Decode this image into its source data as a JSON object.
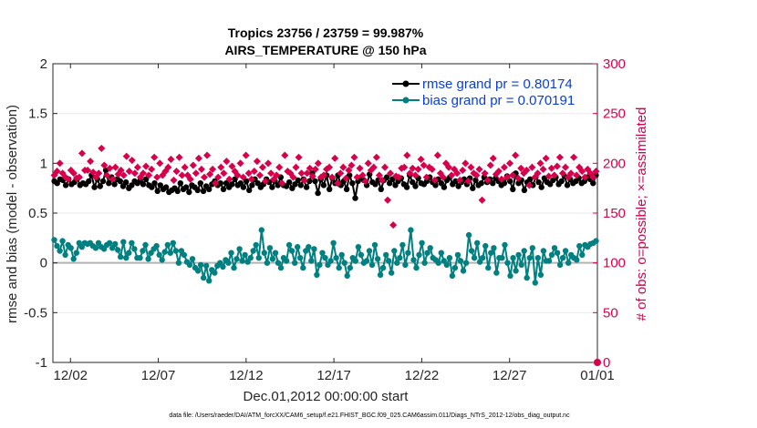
{
  "chart_data": {
    "type": "line",
    "title_line1": "Tropics 23756 / 23759 = 99.987%",
    "title_line2": "AIRS_TEMPERATURE @ 150 hPa",
    "xlabel": "Dec.01,2012 00:00:00 start",
    "ylabel_left": "rmse and bias (model - observation)",
    "ylabel_right": "# of obs: o=possible; ×=assimilated",
    "footnote": "data file: /Users/raeder/DAI/ATM_forcXX/CAM6_setup/f.e21.FHIST_BGC.f09_025.CAM6assim.011/Diags_NTrS_2012-12/obs_diag_output.nc",
    "xlim": [
      0,
      31
    ],
    "x_ticks": [
      {
        "x": 1,
        "label": "12/02"
      },
      {
        "x": 6,
        "label": "12/07"
      },
      {
        "x": 11,
        "label": "12/12"
      },
      {
        "x": 16,
        "label": "12/17"
      },
      {
        "x": 21,
        "label": "12/22"
      },
      {
        "x": 26,
        "label": "12/27"
      },
      {
        "x": 31,
        "label": "01/01"
      }
    ],
    "ylim_left": [
      -1,
      2
    ],
    "y_ticks_left": [
      "-1",
      "-0.5",
      "0",
      "0.5",
      "1",
      "1.5",
      "2"
    ],
    "ylim_right": [
      0,
      300
    ],
    "y_ticks_right": [
      "0",
      "50",
      "100",
      "150",
      "200",
      "250",
      "300"
    ],
    "legend": {
      "placement": "top-right",
      "entries": [
        {
          "name": "rmse",
          "label": "rmse grand pr = 0.80174"
        },
        {
          "name": "bias",
          "label": "bias grand pr = 0.070191"
        }
      ]
    },
    "colors": {
      "rmse": "#000000",
      "bias": "#008080",
      "obs": "#d6004c",
      "zero_line": "#b3b3b3",
      "axis": "#262626"
    },
    "series": [
      {
        "name": "rmse",
        "axis": "left",
        "values": [
          0.82,
          0.8,
          0.84,
          0.83,
          0.78,
          0.84,
          0.79,
          0.81,
          0.85,
          0.78,
          0.8,
          0.79,
          0.82,
          0.88,
          0.76,
          0.84,
          0.77,
          0.82,
          0.93,
          0.8,
          0.86,
          0.79,
          0.84,
          0.82,
          0.77,
          0.81,
          0.75,
          0.78,
          0.82,
          0.8,
          0.83,
          0.79,
          0.84,
          0.78,
          0.76,
          0.8,
          0.72,
          0.78,
          0.74,
          0.76,
          0.71,
          0.73,
          0.75,
          0.72,
          0.8,
          0.74,
          0.76,
          0.71,
          0.78,
          0.76,
          0.73,
          0.8,
          0.72,
          0.77,
          0.74,
          0.79,
          0.82,
          0.78,
          0.8,
          0.74,
          0.8,
          0.76,
          0.79,
          0.84,
          0.78,
          0.8,
          0.76,
          0.82,
          0.73,
          0.78,
          0.84,
          0.8,
          0.76,
          0.79,
          0.84,
          0.81,
          0.76,
          0.82,
          0.78,
          0.86,
          0.78,
          0.77,
          0.81,
          0.75,
          0.79,
          0.83,
          0.78,
          0.84,
          0.76,
          0.82,
          0.9,
          0.82,
          0.7,
          0.84,
          0.78,
          0.88,
          0.74,
          0.85,
          0.8,
          0.88,
          0.78,
          0.82,
          0.74,
          0.88,
          0.8,
          0.65,
          0.82,
          0.86,
          0.83,
          0.78,
          0.89,
          0.81,
          0.79,
          0.83,
          0.74,
          0.83,
          0.86,
          0.8,
          0.84,
          0.78,
          0.82,
          0.85,
          0.79,
          0.76,
          0.88,
          0.81,
          0.77,
          0.85,
          0.8,
          0.79,
          0.82,
          0.86,
          0.81,
          0.78,
          0.84,
          0.8,
          0.76,
          0.83,
          0.86,
          0.79,
          0.82,
          0.77,
          0.81,
          0.84,
          0.79,
          0.85,
          0.75,
          0.83,
          0.78,
          0.8,
          0.86,
          0.81,
          0.84,
          0.8,
          0.85,
          0.82,
          0.78,
          0.8,
          0.87,
          0.82,
          0.74,
          0.9,
          0.8,
          0.83,
          0.73,
          0.81,
          0.84,
          0.78,
          0.86,
          0.81,
          0.76,
          0.85,
          0.81,
          0.79,
          0.83,
          0.86,
          0.79,
          0.82,
          0.87,
          0.78,
          0.84,
          0.8,
          0.82,
          0.85,
          0.8,
          0.82,
          0.86,
          0.84,
          0.8,
          0.88
        ]
      },
      {
        "name": "bias",
        "axis": "left",
        "values": [
          0.23,
          0.17,
          0.12,
          0.22,
          0.08,
          0.18,
          0.15,
          0.04,
          0.1,
          0.2,
          0.16,
          0.2,
          0.19,
          0.2,
          0.17,
          0.15,
          0.2,
          0.16,
          0.14,
          0.18,
          0.2,
          0.15,
          0.19,
          0.13,
          0.06,
          0.21,
          0.05,
          0.1,
          0.2,
          0.14,
          0.05,
          0.05,
          0.12,
          0.18,
          0.04,
          0.1,
          0.14,
          0.17,
          0.08,
          0.03,
          0.11,
          0.18,
          0.1,
          0.2,
          0.12,
          0.0,
          0.12,
          0.08,
          0.01,
          -0.02,
          0.04,
          -0.05,
          -0.08,
          -0.02,
          -0.15,
          -0.03,
          -0.18,
          -0.07,
          -0.1,
          -0.03,
          0.0,
          -0.04,
          0.03,
          0.0,
          0.1,
          -0.05,
          0.04,
          0.14,
          0.02,
          0.08,
          0.01,
          0.05,
          0.12,
          0.18,
          0.05,
          0.33,
          0.1,
          0.0,
          0.15,
          0.04,
          0.1,
          0.0,
          -0.05,
          0.05,
          0.02,
          0.18,
          0.12,
          0.0,
          0.16,
          0.05,
          -0.05,
          0.12,
          0.16,
          0.02,
          0.14,
          -0.12,
          -0.02,
          0.1,
          0.05,
          -0.02,
          0.02,
          0.2,
          0.05,
          -0.05,
          0.08,
          0.0,
          -0.13,
          -0.05,
          0.05,
          0.02,
          0.16,
          0.08,
          0.0,
          0.02,
          0.12,
          -0.02,
          0.18,
          0.04,
          -0.12,
          -0.05,
          0.08,
          0.02,
          -0.1,
          0.12,
          0.0,
          0.05,
          0.18,
          -0.02,
          0.1,
          0.33,
          0.03,
          -0.05,
          0.08,
          0.2,
          0.0,
          0.1,
          0.15,
          0.05,
          0.03,
          0.0,
          0.1,
          0.02,
          -0.02,
          0.05,
          -0.13,
          -0.05,
          0.08,
          0.02,
          -0.08,
          0.0,
          0.28,
          0.12,
          0.05,
          0.2,
          0.01,
          0.05,
          0.17,
          -0.05,
          0.1,
          0.15,
          -0.1,
          0.05,
          0.05,
          0.18,
          0.0,
          -0.13,
          0.05,
          -0.08,
          0.08,
          -0.02,
          0.12,
          -0.15,
          0.05,
          0.15,
          -0.2,
          0.05,
          -0.12,
          0.12,
          0.02,
          0.02,
          0.08,
          0.15,
          0.1,
          -0.02,
          0.05,
          0.12,
          0.0,
          0.08,
          0.05,
          0.03,
          0.17,
          0.08,
          0.18,
          0.16,
          0.19,
          0.2,
          0.22
        ]
      },
      {
        "name": "obs_possible",
        "axis": "right",
        "marker": "o",
        "values": [
          0,
          0,
          0,
          0,
          0,
          0,
          0,
          0,
          0,
          0,
          0,
          0,
          0,
          0,
          0,
          0,
          0,
          0,
          0,
          0,
          0,
          0,
          0,
          0,
          0,
          0,
          0,
          0,
          0,
          0,
          0,
          0,
          0,
          0,
          0,
          0,
          0,
          0,
          0,
          0,
          0,
          0,
          0,
          0,
          0,
          0,
          0,
          0,
          0,
          0,
          0,
          0,
          0,
          0,
          0,
          0,
          0,
          0,
          0,
          0,
          0,
          0,
          0,
          0,
          0,
          0,
          0,
          0,
          0,
          0,
          0,
          0,
          0,
          0,
          0,
          0,
          0,
          0,
          0,
          0,
          0,
          0,
          0,
          0,
          0,
          0,
          0,
          0,
          0,
          0,
          0,
          0,
          0,
          0,
          0,
          0,
          0,
          0,
          0,
          0,
          0,
          0,
          0,
          0,
          0,
          0,
          0,
          0,
          0,
          0,
          0,
          0,
          0,
          0,
          0,
          0,
          0,
          0,
          0,
          0,
          0,
          0,
          0,
          0,
          0,
          0,
          0,
          0,
          0,
          0,
          0,
          0,
          0,
          0,
          0,
          0,
          0,
          0,
          0,
          0,
          0,
          0,
          0,
          0,
          0,
          0,
          0,
          0,
          0,
          0,
          0,
          0,
          0,
          0,
          0,
          0,
          0,
          0,
          0,
          0,
          0,
          0,
          0,
          0,
          0,
          0,
          0,
          0,
          0,
          0,
          0,
          0,
          0,
          0,
          0,
          0,
          0,
          0,
          0,
          0,
          0,
          0,
          0,
          0,
          0,
          0,
          0,
          0,
          0,
          0,
          0,
          0,
          0,
          0,
          0,
          0,
          0,
          0,
          0,
          0,
          0,
          0,
          0,
          0,
          0,
          0,
          0,
          0,
          0,
          0,
          0,
          0,
          0,
          0,
          0,
          0,
          0,
          0,
          0,
          0,
          0,
          0,
          0,
          0,
          0,
          0,
          0,
          0,
          0,
          0,
          0,
          0,
          0,
          0,
          0,
          0,
          0,
          0,
          0,
          0,
          0,
          0,
          0,
          0,
          0,
          0
        ]
      },
      {
        "name": "obs_assimilated",
        "axis": "right",
        "marker": "x",
        "values": [
          188,
          192,
          200,
          190,
          186,
          184,
          193,
          190,
          185,
          186,
          210,
          193,
          193,
          202,
          191,
          186,
          190,
          215,
          198,
          188,
          195,
          184,
          196,
          189,
          193,
          188,
          207,
          192,
          203,
          190,
          196,
          186,
          190,
          197,
          188,
          194,
          206,
          186,
          200,
          188,
          192,
          196,
          204,
          183,
          192,
          206,
          188,
          196,
          188,
          184,
          198,
          190,
          205,
          194,
          186,
          208,
          189,
          194,
          180,
          186,
          196,
          190,
          202,
          184,
          197,
          192,
          188,
          200,
          186,
          208,
          190,
          184,
          192,
          202,
          188,
          196,
          182,
          200,
          190,
          184,
          188,
          196,
          180,
          208,
          192,
          190,
          186,
          196,
          206,
          190,
          183,
          190,
          195,
          187,
          194,
          200,
          186,
          188,
          194,
          196,
          186,
          205,
          180,
          190,
          196,
          185,
          193,
          198,
          206,
          186,
          195,
          188,
          182,
          200,
          193,
          196,
          206,
          188,
          183,
          196,
          163,
          190,
          138,
          187,
          186,
          195,
          196,
          208,
          190,
          195,
          188,
          194,
          204,
          198,
          186,
          196,
          194,
          183,
          208,
          190,
          186,
          200,
          196,
          188,
          194,
          190,
          183,
          193,
          200,
          182,
          196,
          190,
          188,
          194,
          163,
          190,
          183,
          198,
          205,
          189,
          192,
          184,
          196,
          186,
          200,
          188,
          208,
          185,
          195,
          190,
          193,
          178,
          196,
          186,
          190,
          200,
          194,
          205,
          187,
          195,
          188,
          197,
          206,
          190,
          196,
          186,
          190,
          206,
          188,
          196,
          192,
          186,
          194,
          190,
          186,
          192
        ]
      }
    ]
  }
}
